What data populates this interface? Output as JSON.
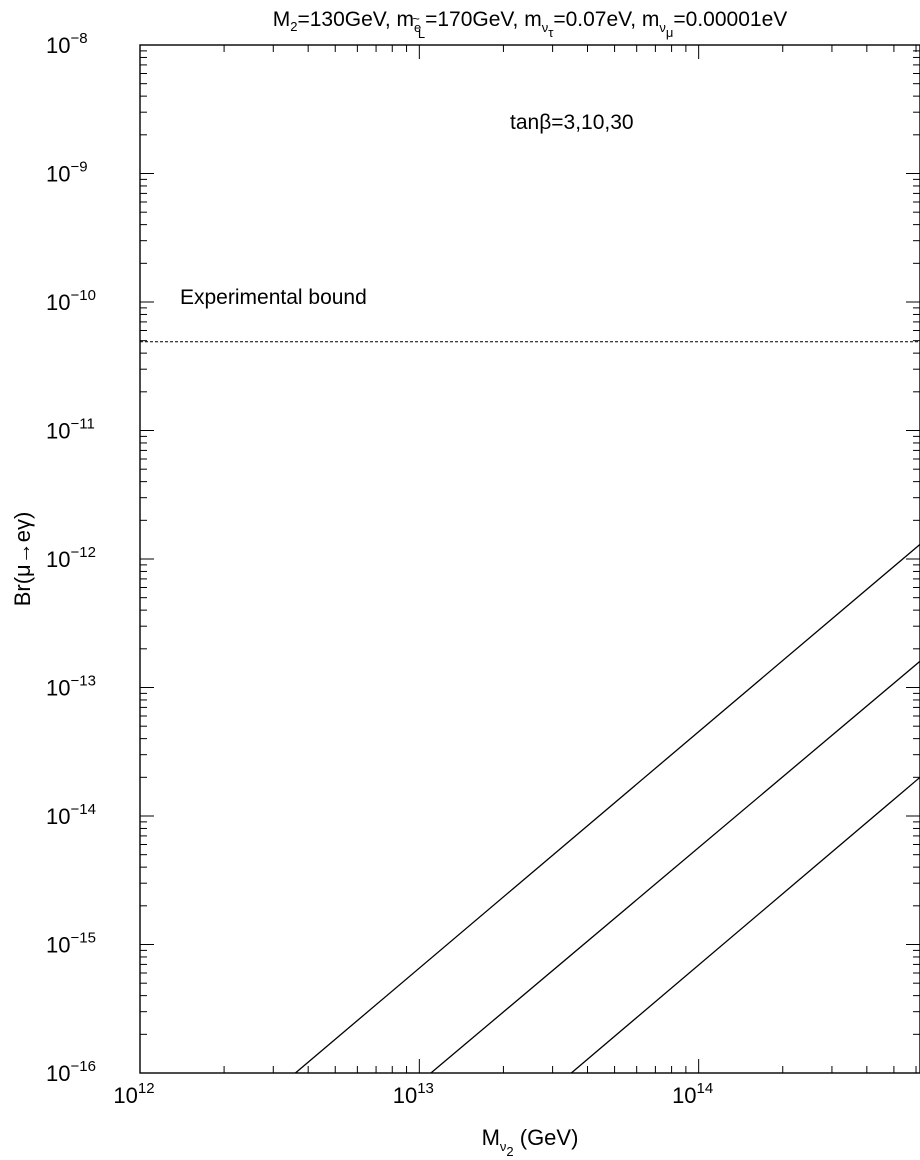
{
  "chart_data": {
    "type": "line",
    "title_parts": {
      "m2": "M",
      "m2_sub": "2",
      "m2_val": "=130GeV, ",
      "msl": "m",
      "msl_sub": "e",
      "msl_tilde": "~",
      "msl_subsub": "L",
      "msl_val": "=170GeV, ",
      "mtau": "m",
      "mtau_sub": "ν",
      "mtau_subsub": "τ",
      "mtau_val": "=0.07eV, ",
      "mmu": "m",
      "mmu_sub": "ν",
      "mmu_subsub": "μ",
      "mmu_val": "=0.00001eV"
    },
    "xlabel_parts": {
      "main": "M",
      "sub": "ν",
      "subsub": "2",
      "unit": " (GeV)"
    },
    "ylabel": "Br(μ→eγ)",
    "x_scale": "log",
    "y_scale": "log",
    "xlim": [
      1000000000000.0,
      620000000000000.0
    ],
    "ylim": [
      1e-16,
      1e-08
    ],
    "x_ticks": [
      {
        "value": 1000000000000.0,
        "base": "10",
        "exp": "12"
      },
      {
        "value": 10000000000000.0,
        "base": "10",
        "exp": "13"
      },
      {
        "value": 100000000000000.0,
        "base": "10",
        "exp": "14"
      }
    ],
    "y_ticks": [
      {
        "value": 1e-08,
        "base": "10",
        "exp": "−8"
      },
      {
        "value": 1e-09,
        "base": "10",
        "exp": "−9"
      },
      {
        "value": 1e-10,
        "base": "10",
        "exp": "−10"
      },
      {
        "value": 1e-11,
        "base": "10",
        "exp": "−11"
      },
      {
        "value": 1e-12,
        "base": "10",
        "exp": "−12"
      },
      {
        "value": 1e-13,
        "base": "10",
        "exp": "−13"
      },
      {
        "value": 1e-14,
        "base": "10",
        "exp": "−14"
      },
      {
        "value": 1e-15,
        "base": "10",
        "exp": "−15"
      },
      {
        "value": 1e-16,
        "base": "10",
        "exp": "−16"
      }
    ],
    "series": [
      {
        "x": [
          3600000000000.0,
          620000000000000.0
        ],
        "y": [
          1e-16,
          1.3e-12
        ]
      },
      {
        "x": [
          11000000000000.0,
          620000000000000.0
        ],
        "y": [
          1e-16,
          1.6e-13
        ]
      },
      {
        "x": [
          35000000000000.0,
          620000000000000.0
        ],
        "y": [
          1e-16,
          2e-14
        ]
      }
    ],
    "reference_line": {
      "label": "Experimental bound",
      "value": 4.9e-11,
      "style": "dashed"
    },
    "annotation": "tanβ=3,10,30",
    "grid": false,
    "line_color": "#000000"
  }
}
